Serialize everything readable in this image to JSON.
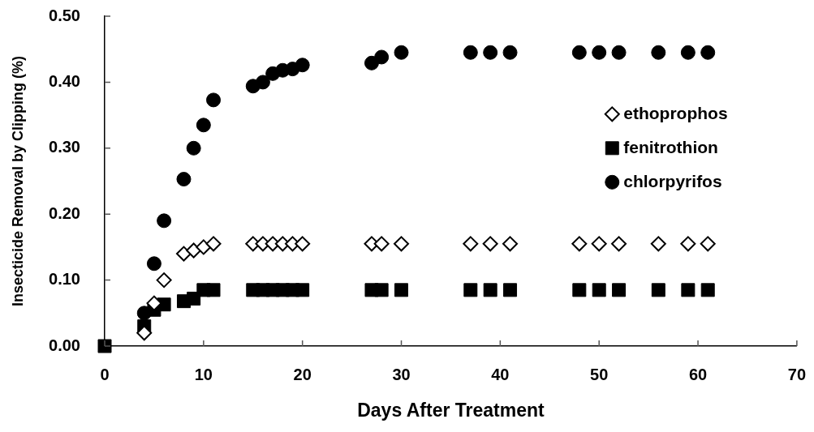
{
  "chart_data": {
    "type": "scatter",
    "xlabel": "Days After Treatment",
    "ylabel": "Insecticide Removal by Clipping (%)",
    "xlim": [
      0,
      70
    ],
    "xticks": [
      0,
      10,
      20,
      30,
      40,
      50,
      60,
      70
    ],
    "ylim": [
      0,
      0.5
    ],
    "yticks": [
      {
        "value": 0,
        "label": "0.00"
      },
      {
        "value": 0.1,
        "label": "0.10"
      },
      {
        "value": 0.2,
        "label": "0.20"
      },
      {
        "value": 0.3,
        "label": "0.30"
      },
      {
        "value": 0.4,
        "label": "0.40"
      },
      {
        "value": 0.5,
        "label": "0.50"
      }
    ],
    "grid": false,
    "legend": "right",
    "series": [
      {
        "name": "ethoprophos",
        "color": "#000000",
        "marker": "diamond",
        "x": [
          4,
          5,
          6,
          8,
          9,
          10,
          11,
          15,
          16,
          17,
          18,
          19,
          20,
          27,
          28,
          30,
          37,
          39,
          41,
          48,
          50,
          52,
          56,
          59,
          61
        ],
        "values": [
          0.02,
          0.065,
          0.1,
          0.14,
          0.145,
          0.15,
          0.155,
          0.155,
          0.155,
          0.155,
          0.155,
          0.155,
          0.155,
          0.155,
          0.155,
          0.155,
          0.155,
          0.155,
          0.155,
          0.155,
          0.155,
          0.155,
          0.155,
          0.155,
          0.155
        ]
      },
      {
        "name": "fenitrothion",
        "color": "#000000",
        "marker": "square",
        "x": [
          0,
          4,
          5,
          6,
          8,
          9,
          10,
          11,
          15,
          16,
          17,
          18,
          19,
          20,
          27,
          28,
          30,
          37,
          39,
          41,
          48,
          50,
          52,
          56,
          59,
          61
        ],
        "values": [
          0,
          0.03,
          0.055,
          0.063,
          0.068,
          0.072,
          0.085,
          0.085,
          0.085,
          0.085,
          0.085,
          0.085,
          0.085,
          0.085,
          0.085,
          0.085,
          0.085,
          0.085,
          0.085,
          0.085,
          0.085,
          0.085,
          0.085,
          0.085,
          0.085,
          0.085
        ]
      },
      {
        "name": "chlorpyrifos",
        "color": "#000000",
        "marker": "circle",
        "x": [
          4,
          5,
          6,
          8,
          9,
          10,
          11,
          15,
          16,
          17,
          18,
          19,
          20,
          27,
          28,
          30,
          37,
          39,
          41,
          48,
          50,
          52,
          56,
          59,
          61
        ],
        "values": [
          0.05,
          0.125,
          0.19,
          0.253,
          0.3,
          0.335,
          0.373,
          0.394,
          0.4,
          0.413,
          0.418,
          0.42,
          0.426,
          0.429,
          0.438,
          0.445,
          0.445,
          0.445,
          0.445,
          0.445,
          0.445,
          0.445,
          0.445,
          0.445,
          0.445
        ]
      }
    ]
  }
}
